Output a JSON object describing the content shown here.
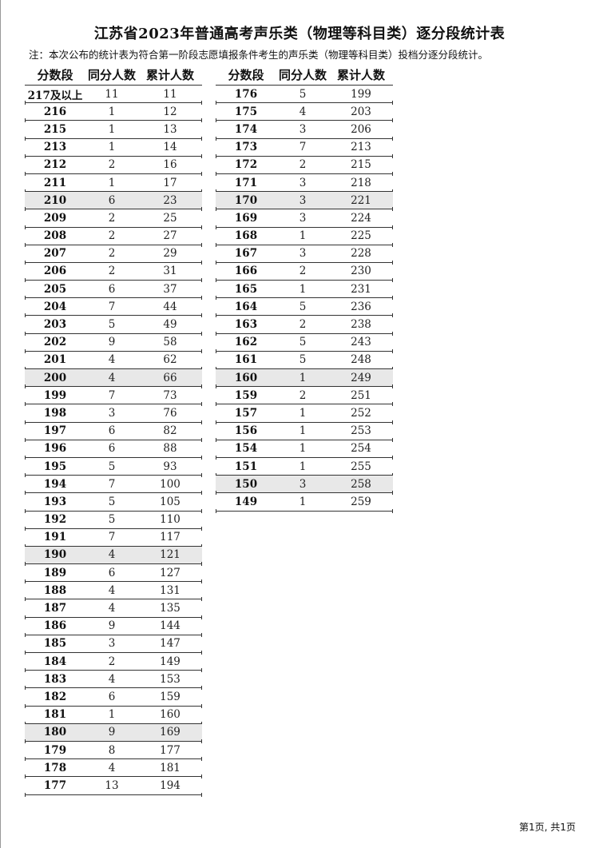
{
  "title": "江苏省2023年普通高考声乐类（物理等科目类）逐分段统计表",
  "note": "注：本次公布的统计表为符合第一阶段志愿填报条件考生的声乐类（物理等科目类）投档分逐分段统计。",
  "headers": [
    "分数段",
    "同分人数",
    "累计人数"
  ],
  "highlight_color": "#e8e8e8",
  "left_rows": [
    {
      "score": "217及以上",
      "same": "11",
      "cum": "11",
      "highlighted": false
    },
    {
      "score": "216",
      "same": "1",
      "cum": "12",
      "highlighted": false
    },
    {
      "score": "215",
      "same": "1",
      "cum": "13",
      "highlighted": false
    },
    {
      "score": "213",
      "same": "1",
      "cum": "14",
      "highlighted": false
    },
    {
      "score": "212",
      "same": "2",
      "cum": "16",
      "highlighted": false
    },
    {
      "score": "211",
      "same": "1",
      "cum": "17",
      "highlighted": false
    },
    {
      "score": "210",
      "same": "6",
      "cum": "23",
      "highlighted": true
    },
    {
      "score": "209",
      "same": "2",
      "cum": "25",
      "highlighted": false
    },
    {
      "score": "208",
      "same": "2",
      "cum": "27",
      "highlighted": false
    },
    {
      "score": "207",
      "same": "2",
      "cum": "29",
      "highlighted": false
    },
    {
      "score": "206",
      "same": "2",
      "cum": "31",
      "highlighted": false
    },
    {
      "score": "205",
      "same": "6",
      "cum": "37",
      "highlighted": false
    },
    {
      "score": "204",
      "same": "7",
      "cum": "44",
      "highlighted": false
    },
    {
      "score": "203",
      "same": "5",
      "cum": "49",
      "highlighted": false
    },
    {
      "score": "202",
      "same": "9",
      "cum": "58",
      "highlighted": false
    },
    {
      "score": "201",
      "same": "4",
      "cum": "62",
      "highlighted": false
    },
    {
      "score": "200",
      "same": "4",
      "cum": "66",
      "highlighted": true
    },
    {
      "score": "199",
      "same": "7",
      "cum": "73",
      "highlighted": false
    },
    {
      "score": "198",
      "same": "3",
      "cum": "76",
      "highlighted": false
    },
    {
      "score": "197",
      "same": "6",
      "cum": "82",
      "highlighted": false
    },
    {
      "score": "196",
      "same": "6",
      "cum": "88",
      "highlighted": false
    },
    {
      "score": "195",
      "same": "5",
      "cum": "93",
      "highlighted": false
    },
    {
      "score": "194",
      "same": "7",
      "cum": "100",
      "highlighted": false
    },
    {
      "score": "193",
      "same": "5",
      "cum": "105",
      "highlighted": false
    },
    {
      "score": "192",
      "same": "5",
      "cum": "110",
      "highlighted": false
    },
    {
      "score": "191",
      "same": "7",
      "cum": "117",
      "highlighted": false
    },
    {
      "score": "190",
      "same": "4",
      "cum": "121",
      "highlighted": true
    },
    {
      "score": "189",
      "same": "6",
      "cum": "127",
      "highlighted": false
    },
    {
      "score": "188",
      "same": "4",
      "cum": "131",
      "highlighted": false
    },
    {
      "score": "187",
      "same": "4",
      "cum": "135",
      "highlighted": false
    },
    {
      "score": "186",
      "same": "9",
      "cum": "144",
      "highlighted": false
    },
    {
      "score": "185",
      "same": "3",
      "cum": "147",
      "highlighted": false
    },
    {
      "score": "184",
      "same": "2",
      "cum": "149",
      "highlighted": false
    },
    {
      "score": "183",
      "same": "4",
      "cum": "153",
      "highlighted": false
    },
    {
      "score": "182",
      "same": "6",
      "cum": "159",
      "highlighted": false
    },
    {
      "score": "181",
      "same": "1",
      "cum": "160",
      "highlighted": false
    },
    {
      "score": "180",
      "same": "9",
      "cum": "169",
      "highlighted": true
    },
    {
      "score": "179",
      "same": "8",
      "cum": "177",
      "highlighted": false
    },
    {
      "score": "178",
      "same": "4",
      "cum": "181",
      "highlighted": false
    },
    {
      "score": "177",
      "same": "13",
      "cum": "194",
      "highlighted": false
    }
  ],
  "right_rows": [
    {
      "score": "176",
      "same": "5",
      "cum": "199",
      "highlighted": false
    },
    {
      "score": "175",
      "same": "4",
      "cum": "203",
      "highlighted": false
    },
    {
      "score": "174",
      "same": "3",
      "cum": "206",
      "highlighted": false
    },
    {
      "score": "173",
      "same": "7",
      "cum": "213",
      "highlighted": false
    },
    {
      "score": "172",
      "same": "2",
      "cum": "215",
      "highlighted": false
    },
    {
      "score": "171",
      "same": "3",
      "cum": "218",
      "highlighted": false
    },
    {
      "score": "170",
      "same": "3",
      "cum": "221",
      "highlighted": true
    },
    {
      "score": "169",
      "same": "3",
      "cum": "224",
      "highlighted": false
    },
    {
      "score": "168",
      "same": "1",
      "cum": "225",
      "highlighted": false
    },
    {
      "score": "167",
      "same": "3",
      "cum": "228",
      "highlighted": false
    },
    {
      "score": "166",
      "same": "2",
      "cum": "230",
      "highlighted": false
    },
    {
      "score": "165",
      "same": "1",
      "cum": "231",
      "highlighted": false
    },
    {
      "score": "164",
      "same": "5",
      "cum": "236",
      "highlighted": false
    },
    {
      "score": "163",
      "same": "2",
      "cum": "238",
      "highlighted": false
    },
    {
      "score": "162",
      "same": "5",
      "cum": "243",
      "highlighted": false
    },
    {
      "score": "161",
      "same": "5",
      "cum": "248",
      "highlighted": false
    },
    {
      "score": "160",
      "same": "1",
      "cum": "249",
      "highlighted": true
    },
    {
      "score": "159",
      "same": "2",
      "cum": "251",
      "highlighted": false
    },
    {
      "score": "157",
      "same": "1",
      "cum": "252",
      "highlighted": false
    },
    {
      "score": "156",
      "same": "1",
      "cum": "253",
      "highlighted": false
    },
    {
      "score": "154",
      "same": "1",
      "cum": "254",
      "highlighted": false
    },
    {
      "score": "151",
      "same": "1",
      "cum": "255",
      "highlighted": false
    },
    {
      "score": "150",
      "same": "3",
      "cum": "258",
      "highlighted": true
    },
    {
      "score": "149",
      "same": "1",
      "cum": "259",
      "highlighted": false
    }
  ],
  "footer": "第1页, 共1页"
}
